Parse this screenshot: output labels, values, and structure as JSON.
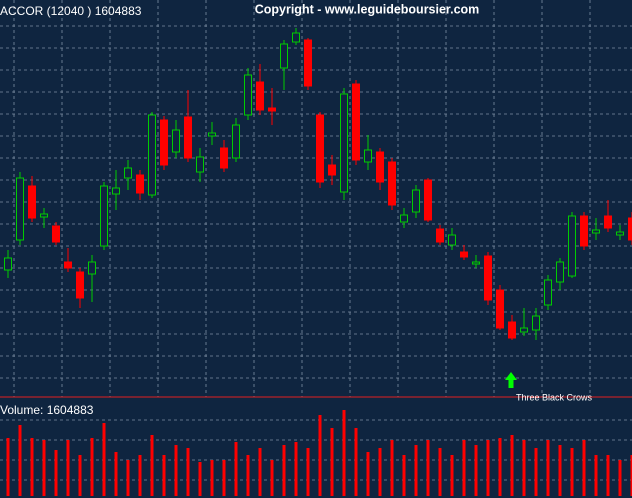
{
  "chart_data": [
    {
      "type": "candlestick",
      "title": "ACCOR (12040 ) 1604883",
      "subtitle": "Copyright - www.leguideboursier.com",
      "annotation": "Three Black Crows",
      "up_color": "#00cc00",
      "down_color": "#ff0000",
      "ylim": [
        0,
        100
      ],
      "open": [
        32.5,
        40,
        53.5,
        45.75,
        43.5,
        34.5,
        32,
        31.5,
        38.5,
        51.5,
        55.5,
        56.25,
        51.25,
        70,
        62,
        70.75,
        57,
        66,
        63,
        60.5,
        71.25,
        79.5,
        73,
        83,
        89.5,
        90,
        71.25,
        58.75,
        52,
        79,
        59.5,
        62,
        59.5,
        44.5,
        47,
        55,
        42.75,
        38.75,
        37,
        34,
        36,
        27.5,
        19.5,
        17,
        17.5,
        23.75,
        29.5,
        31,
        46,
        41.75,
        46,
        41.25,
        45.5
      ],
      "high": [
        37.5,
        57,
        56,
        48,
        44.5,
        38,
        33,
        36.25,
        54.5,
        57.5,
        60,
        57.5,
        72,
        71,
        70,
        77.5,
        63,
        69.5,
        65,
        70.5,
        83,
        84,
        78,
        90,
        93,
        90.5,
        72,
        61.25,
        78,
        80,
        66.25,
        63,
        60.5,
        48,
        53.75,
        55.5,
        43.75,
        43,
        38.75,
        36.25,
        37,
        28.75,
        21.25,
        23,
        23,
        31.25,
        35.5,
        47,
        47,
        45.5,
        50,
        43.75,
        47
      ],
      "low": [
        30.5,
        38.75,
        44.5,
        43,
        38.75,
        32,
        23,
        24.5,
        37.5,
        47.5,
        52.5,
        50,
        50.5,
        57.5,
        60.5,
        59.5,
        54.5,
        63.75,
        57,
        59.5,
        70,
        71.25,
        68.75,
        77.5,
        88.75,
        77.5,
        53,
        53.75,
        50,
        58.75,
        57.5,
        52.5,
        47.5,
        43,
        45.5,
        44.5,
        38.75,
        37.5,
        35,
        33,
        23.75,
        17.5,
        15,
        16,
        15,
        22.5,
        27.5,
        30.5,
        37.5,
        40,
        42,
        40,
        38.75
      ],
      "close": [
        35.5,
        55.5,
        45.5,
        46.5,
        39.5,
        33,
        25.5,
        34.5,
        53.5,
        53,
        58,
        51.75,
        71.25,
        58.75,
        67.5,
        60.5,
        60.75,
        66.75,
        58,
        68.75,
        81.25,
        72.5,
        72.25,
        89,
        91.75,
        78.5,
        54.5,
        56.25,
        76.5,
        60,
        62.5,
        54.5,
        48.75,
        46.25,
        52.5,
        45,
        39.5,
        41.25,
        35.75,
        34.5,
        25,
        18,
        15.5,
        18,
        21,
        30,
        34.5,
        46,
        38.5,
        42.5,
        43,
        42,
        40
      ]
    },
    {
      "type": "bar",
      "title": "Volume: 1604883",
      "color": "#ff0000",
      "ylim": [
        0,
        100
      ],
      "values": [
        58,
        71,
        58,
        56,
        46,
        56,
        41,
        58,
        73,
        44,
        36,
        41,
        61,
        41,
        51,
        48,
        34,
        36,
        36,
        54,
        41,
        48,
        36,
        51,
        54,
        48,
        81,
        68,
        86,
        68,
        44,
        48,
        56,
        41,
        51,
        56,
        48,
        41,
        56,
        51,
        56,
        58,
        61,
        56,
        48,
        56,
        51,
        48,
        56,
        41,
        41,
        36,
        41
      ]
    }
  ]
}
